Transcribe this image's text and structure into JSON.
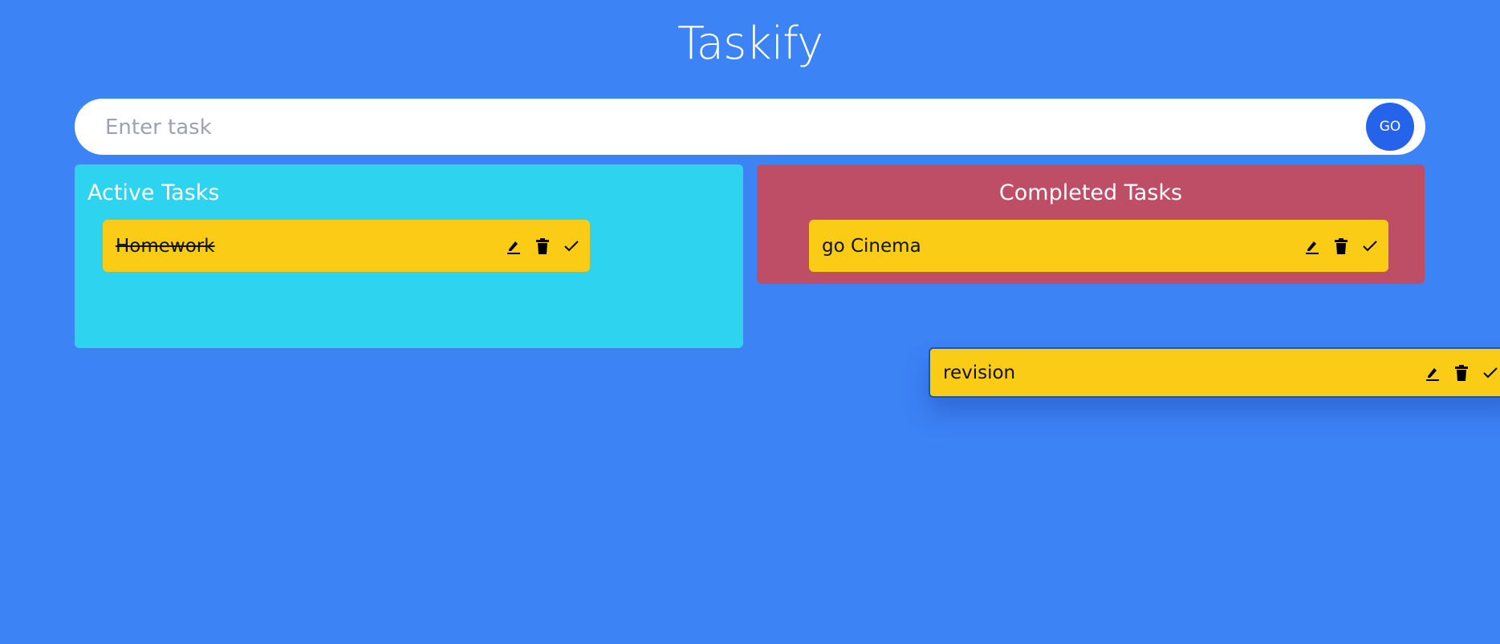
{
  "app": {
    "title": "Taskify"
  },
  "input": {
    "placeholder": "Enter task",
    "value": "",
    "submit_label": "GO"
  },
  "active": {
    "heading": "Active Tasks",
    "tasks": [
      {
        "text": "Homework",
        "completed_style": true
      }
    ]
  },
  "completed": {
    "heading": "Completed Tasks",
    "tasks": [
      {
        "text": "go Cinema"
      }
    ]
  },
  "dragging": {
    "text": "revision"
  },
  "colors": {
    "background": "#3c83f6",
    "active_panel": "#2dd3ef",
    "completed_panel": "#be4e66",
    "card": "#facc15",
    "go_button": "#2563eb"
  },
  "icons": [
    "edit-icon",
    "trash-icon",
    "check-icon"
  ]
}
